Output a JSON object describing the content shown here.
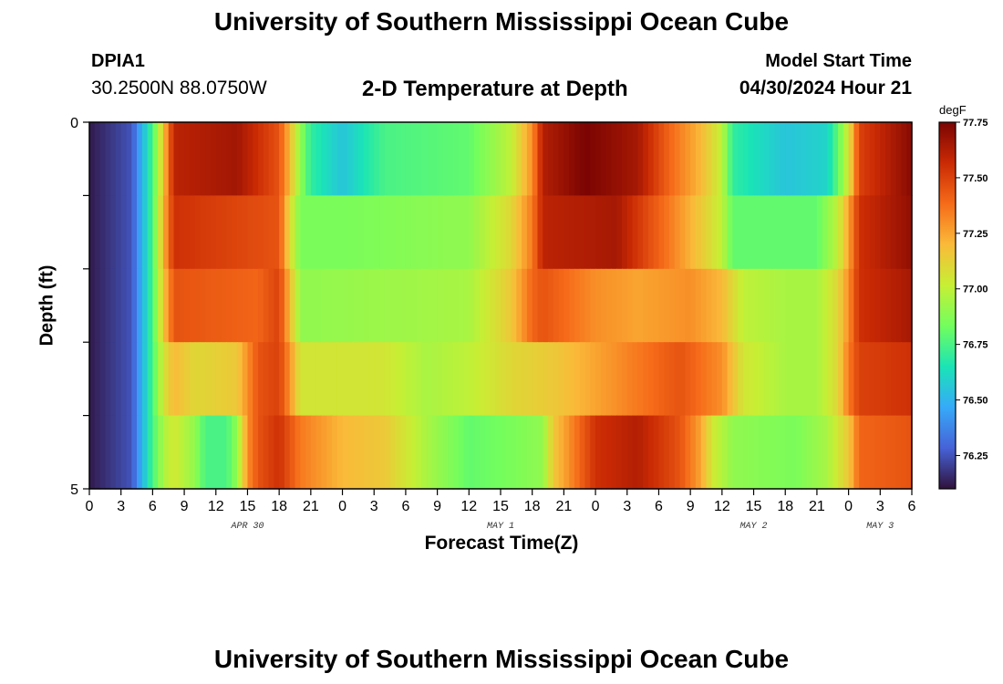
{
  "header": {
    "title": "University of Southern Mississippi Ocean Cube",
    "station_id": "DPIA1",
    "station_coords": "30.2500N  88.0750W",
    "plot_title": "2-D Temperature at Depth",
    "start_label": "Model Start Time",
    "start_value": "04/30/2024 Hour 21"
  },
  "footer": {
    "title": "University of Southern Mississippi Ocean Cube"
  },
  "chart_data": {
    "type": "heatmap",
    "title": "2-D Temperature at Depth",
    "xlabel": "Forecast Time(Z)",
    "ylabel": "Depth (ft)",
    "x_tick_labels": [
      "0",
      "3",
      "6",
      "9",
      "12",
      "15",
      "18",
      "21",
      "0",
      "3",
      "6",
      "9",
      "12",
      "15",
      "18",
      "21",
      "0",
      "3",
      "6",
      "9",
      "12",
      "15",
      "18",
      "21",
      "0",
      "3",
      "6"
    ],
    "date_labels": [
      {
        "label": "APR 30",
        "hour_index": 15
      },
      {
        "label": "MAY 1",
        "hour_index": 39
      },
      {
        "label": "MAY 2",
        "hour_index": 63
      },
      {
        "label": "MAY 3",
        "hour_index": 75
      }
    ],
    "x_range_hours": [
      0,
      78
    ],
    "y_tick_labels": [
      "0",
      "5"
    ],
    "y_range_ft": [
      0,
      5
    ],
    "depth_layers": [
      0,
      1,
      2,
      3,
      4
    ],
    "colorbar": {
      "unit": "degF",
      "min": 76.1,
      "max": 77.75,
      "tick_labels": [
        "77.75",
        "77.50",
        "77.25",
        "77.00",
        "76.75",
        "76.50",
        "76.25"
      ],
      "colors": [
        "#30123b",
        "#4662d7",
        "#36aaf9",
        "#1ae4b6",
        "#72fe5e",
        "#c7ef34",
        "#faba39",
        "#f66b19",
        "#ca2a04",
        "#7a0403"
      ]
    },
    "temperature_profiles": [
      {
        "depth_layer": 0,
        "keyframes_hour_value": [
          [
            0,
            76.12
          ],
          [
            4,
            76.25
          ],
          [
            6,
            76.75
          ],
          [
            7,
            77.15
          ],
          [
            8,
            77.6
          ],
          [
            14,
            77.66
          ],
          [
            18,
            77.45
          ],
          [
            19,
            77.2
          ],
          [
            20,
            76.9
          ],
          [
            21,
            76.7
          ],
          [
            24,
            76.55
          ],
          [
            28,
            76.75
          ],
          [
            36,
            76.8
          ],
          [
            40,
            77.0
          ],
          [
            42,
            77.3
          ],
          [
            43,
            77.62
          ],
          [
            47,
            77.75
          ],
          [
            52,
            77.65
          ],
          [
            55,
            77.4
          ],
          [
            58,
            77.2
          ],
          [
            60,
            77.0
          ],
          [
            61,
            76.7
          ],
          [
            66,
            76.55
          ],
          [
            70,
            76.6
          ],
          [
            71,
            76.8
          ],
          [
            72,
            77.05
          ],
          [
            73,
            77.5
          ],
          [
            78,
            77.72
          ]
        ]
      },
      {
        "depth_layer": 1,
        "keyframes_hour_value": [
          [
            0,
            76.12
          ],
          [
            4,
            76.25
          ],
          [
            6,
            76.75
          ],
          [
            7,
            77.2
          ],
          [
            8,
            77.55
          ],
          [
            18,
            77.45
          ],
          [
            19,
            77.1
          ],
          [
            20,
            76.85
          ],
          [
            24,
            76.85
          ],
          [
            36,
            76.9
          ],
          [
            40,
            77.1
          ],
          [
            42,
            77.35
          ],
          [
            43,
            77.6
          ],
          [
            50,
            77.65
          ],
          [
            55,
            77.35
          ],
          [
            58,
            77.15
          ],
          [
            60,
            77.0
          ],
          [
            61,
            76.8
          ],
          [
            69,
            76.8
          ],
          [
            71,
            77.0
          ],
          [
            72,
            77.25
          ],
          [
            73,
            77.55
          ],
          [
            78,
            77.7
          ]
        ]
      },
      {
        "depth_layer": 2,
        "keyframes_hour_value": [
          [
            0,
            76.12
          ],
          [
            4,
            76.25
          ],
          [
            6,
            76.75
          ],
          [
            7,
            77.15
          ],
          [
            8,
            77.45
          ],
          [
            16,
            77.4
          ],
          [
            18,
            77.5
          ],
          [
            19,
            77.2
          ],
          [
            20,
            76.9
          ],
          [
            36,
            76.95
          ],
          [
            40,
            77.15
          ],
          [
            42,
            77.4
          ],
          [
            43,
            77.45
          ],
          [
            48,
            77.3
          ],
          [
            52,
            77.25
          ],
          [
            57,
            77.3
          ],
          [
            60,
            77.2
          ],
          [
            62,
            77.0
          ],
          [
            66,
            76.95
          ],
          [
            69,
            76.95
          ],
          [
            71,
            77.1
          ],
          [
            72,
            77.3
          ],
          [
            73,
            77.55
          ],
          [
            78,
            77.65
          ]
        ]
      },
      {
        "depth_layer": 3,
        "keyframes_hour_value": [
          [
            0,
            76.12
          ],
          [
            4,
            76.25
          ],
          [
            6,
            76.75
          ],
          [
            7,
            77.05
          ],
          [
            8,
            77.2
          ],
          [
            10,
            77.1
          ],
          [
            14,
            77.15
          ],
          [
            15,
            77.3
          ],
          [
            16,
            77.45
          ],
          [
            18,
            77.5
          ],
          [
            19,
            77.3
          ],
          [
            20,
            77.05
          ],
          [
            28,
            77.05
          ],
          [
            32,
            76.95
          ],
          [
            36,
            77.0
          ],
          [
            40,
            77.1
          ],
          [
            44,
            77.15
          ],
          [
            48,
            77.25
          ],
          [
            52,
            77.35
          ],
          [
            56,
            77.45
          ],
          [
            60,
            77.3
          ],
          [
            62,
            77.05
          ],
          [
            66,
            76.95
          ],
          [
            69,
            76.95
          ],
          [
            71,
            77.1
          ],
          [
            72,
            77.35
          ],
          [
            73,
            77.5
          ],
          [
            78,
            77.55
          ]
        ]
      },
      {
        "depth_layer": 4,
        "keyframes_hour_value": [
          [
            0,
            76.12
          ],
          [
            4,
            76.25
          ],
          [
            6,
            76.75
          ],
          [
            7,
            76.95
          ],
          [
            8,
            77.05
          ],
          [
            10,
            76.9
          ],
          [
            11,
            76.75
          ],
          [
            13,
            76.75
          ],
          [
            14,
            76.9
          ],
          [
            15,
            77.3
          ],
          [
            16,
            77.45
          ],
          [
            18,
            77.55
          ],
          [
            20,
            77.35
          ],
          [
            24,
            77.2
          ],
          [
            28,
            77.15
          ],
          [
            32,
            76.95
          ],
          [
            36,
            76.8
          ],
          [
            40,
            76.85
          ],
          [
            43,
            76.9
          ],
          [
            44,
            77.15
          ],
          [
            48,
            77.55
          ],
          [
            52,
            77.62
          ],
          [
            56,
            77.45
          ],
          [
            58,
            77.25
          ],
          [
            59,
            77.05
          ],
          [
            61,
            76.9
          ],
          [
            67,
            76.85
          ],
          [
            70,
            76.95
          ],
          [
            72,
            77.15
          ],
          [
            73,
            77.4
          ],
          [
            78,
            77.45
          ]
        ]
      }
    ]
  }
}
